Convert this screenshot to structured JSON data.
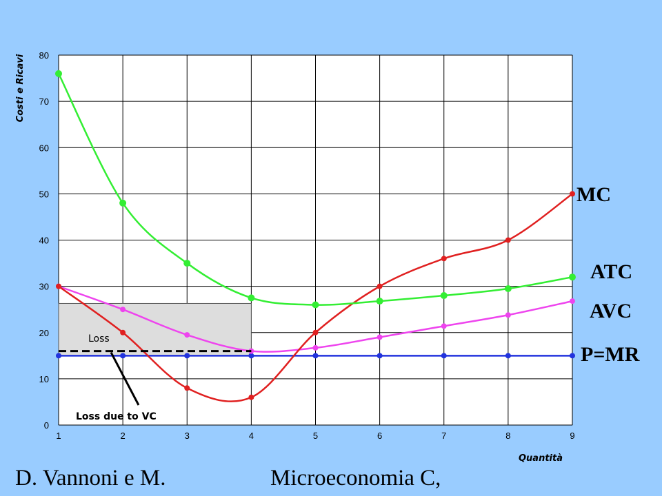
{
  "chart_data": {
    "type": "line",
    "xlabel": "Quantità",
    "ylabel": "Costi e Ricavi",
    "x": [
      1,
      2,
      3,
      4,
      5,
      6,
      7,
      8,
      9
    ],
    "xlim": [
      1,
      9
    ],
    "ylim": [
      0,
      80
    ],
    "yticks": [
      0,
      10,
      20,
      30,
      40,
      50,
      60,
      70,
      80
    ],
    "grid": true,
    "series": [
      {
        "name": "MC",
        "color": "#E02020",
        "values": [
          30,
          20,
          8,
          6,
          20,
          30,
          36,
          40,
          50
        ]
      },
      {
        "name": "ATC",
        "color": "#33EE33",
        "values": [
          76,
          48,
          35,
          27.5,
          26,
          26.8,
          28,
          29.5,
          32
        ]
      },
      {
        "name": "AVC",
        "color": "#EE44EE",
        "values": [
          30,
          25,
          19.5,
          16,
          16.7,
          19,
          21.4,
          23.8,
          26.8
        ]
      },
      {
        "name": "P=MR",
        "color": "#2233DD",
        "values": [
          15,
          15,
          15,
          15,
          15,
          15,
          15,
          15,
          15
        ]
      }
    ],
    "annotations": {
      "loss_label": "Loss",
      "loss_vc_label": "Loss due to VC",
      "loss_rect": {
        "x0": 1,
        "x1": 4,
        "y0": 15,
        "y1": 26.3
      },
      "dashed_level": 16
    }
  },
  "footer": {
    "left": "D. Vannoni e M.",
    "right": "Microeconomia C,"
  }
}
